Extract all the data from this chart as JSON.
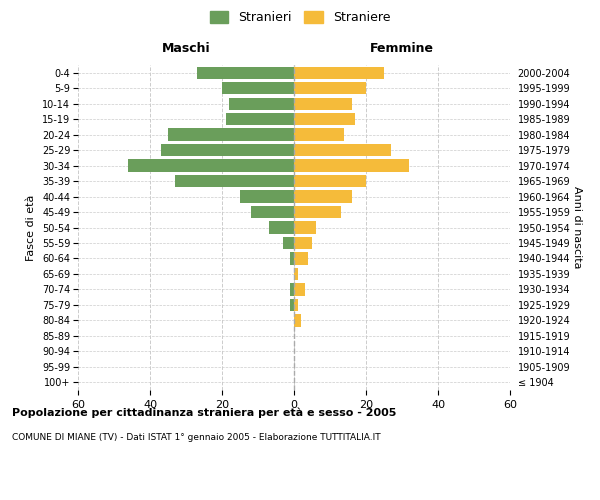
{
  "age_groups": [
    "100+",
    "95-99",
    "90-94",
    "85-89",
    "80-84",
    "75-79",
    "70-74",
    "65-69",
    "60-64",
    "55-59",
    "50-54",
    "45-49",
    "40-44",
    "35-39",
    "30-34",
    "25-29",
    "20-24",
    "15-19",
    "10-14",
    "5-9",
    "0-4"
  ],
  "birth_years": [
    "≤ 1904",
    "1905-1909",
    "1910-1914",
    "1915-1919",
    "1920-1924",
    "1925-1929",
    "1930-1934",
    "1935-1939",
    "1940-1944",
    "1945-1949",
    "1950-1954",
    "1955-1959",
    "1960-1964",
    "1965-1969",
    "1970-1974",
    "1975-1979",
    "1980-1984",
    "1985-1989",
    "1990-1994",
    "1995-1999",
    "2000-2004"
  ],
  "males": [
    0,
    0,
    0,
    0,
    0,
    1,
    1,
    0,
    1,
    3,
    7,
    12,
    15,
    33,
    46,
    37,
    35,
    19,
    18,
    20,
    27
  ],
  "females": [
    0,
    0,
    0,
    0,
    2,
    1,
    3,
    1,
    4,
    5,
    6,
    13,
    16,
    20,
    32,
    27,
    14,
    17,
    16,
    20,
    25
  ],
  "male_color": "#6a9e5b",
  "female_color": "#f5bb3a",
  "title_main": "Popolazione per cittadinanza straniera per età e sesso - 2005",
  "title_sub": "COMUNE DI MIANE (TV) - Dati ISTAT 1° gennaio 2005 - Elaborazione TUTTITALIA.IT",
  "xlabel_left": "Maschi",
  "xlabel_right": "Femmine",
  "ylabel_left": "Fasce di età",
  "ylabel_right": "Anni di nascita",
  "legend_male": "Stranieri",
  "legend_female": "Straniere",
  "xlim": 60,
  "background_color": "#ffffff",
  "grid_color": "#cccccc",
  "bar_height": 0.8
}
